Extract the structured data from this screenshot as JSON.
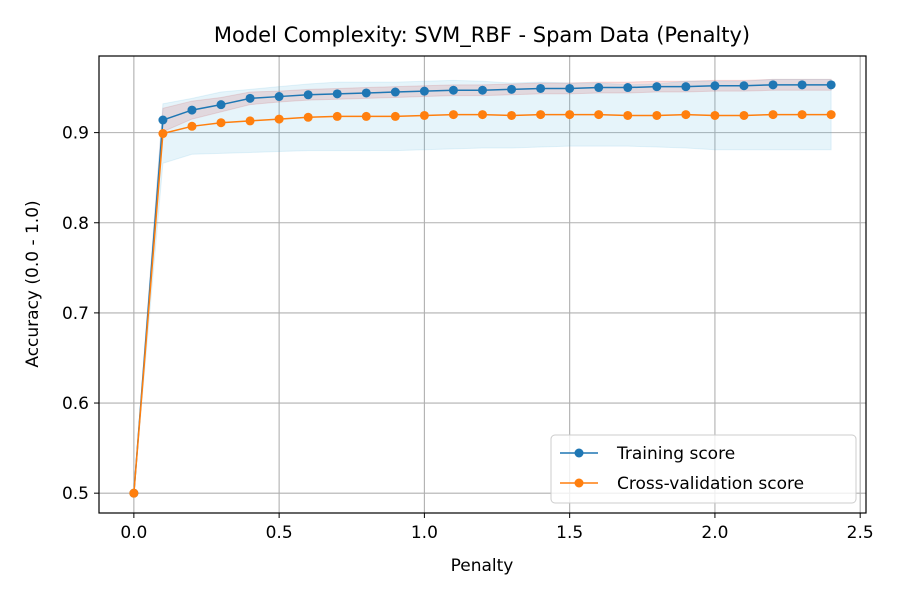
{
  "chart_data": {
    "type": "line",
    "title": "Model Complexity: SVM_RBF - Spam Data (Penalty)",
    "xlabel": "Penalty",
    "ylabel": "Accuracy (0.0 - 1.0)",
    "xlim": [
      -0.12,
      2.52
    ],
    "ylim": [
      0.478,
      0.985
    ],
    "xticks": [
      0.0,
      0.5,
      1.0,
      1.5,
      2.0,
      2.5
    ],
    "xtick_labels": [
      "0.0",
      "0.5",
      "1.0",
      "1.5",
      "2.0",
      "2.5"
    ],
    "yticks": [
      0.5,
      0.6,
      0.7,
      0.8,
      0.9
    ],
    "ytick_labels": [
      "0.5",
      "0.6",
      "0.7",
      "0.8",
      "0.9"
    ],
    "grid": true,
    "legend_position": "lower-right",
    "x": [
      0.0,
      0.1,
      0.2,
      0.3,
      0.4,
      0.5,
      0.6,
      0.7,
      0.8,
      0.9,
      1.0,
      1.1,
      1.2,
      1.3,
      1.4,
      1.5,
      1.6,
      1.7,
      1.8,
      1.9,
      2.0,
      2.1,
      2.2,
      2.3,
      2.4
    ],
    "series": [
      {
        "name": "Training score",
        "color": "#1f77b4",
        "band_color": "#d62728",
        "values": [
          0.5,
          0.914,
          0.925,
          0.931,
          0.938,
          0.94,
          0.942,
          0.943,
          0.944,
          0.945,
          0.946,
          0.947,
          0.947,
          0.948,
          0.949,
          0.949,
          0.95,
          0.95,
          0.951,
          0.951,
          0.952,
          0.952,
          0.953,
          0.953,
          0.953
        ],
        "lower": [
          0.5,
          0.901,
          0.915,
          0.923,
          0.931,
          0.934,
          0.936,
          0.937,
          0.938,
          0.939,
          0.94,
          0.941,
          0.941,
          0.942,
          0.943,
          0.943,
          0.944,
          0.944,
          0.945,
          0.945,
          0.946,
          0.946,
          0.947,
          0.947,
          0.947
        ],
        "upper": [
          0.5,
          0.927,
          0.935,
          0.939,
          0.945,
          0.946,
          0.948,
          0.949,
          0.95,
          0.951,
          0.952,
          0.953,
          0.953,
          0.954,
          0.955,
          0.955,
          0.956,
          0.956,
          0.957,
          0.957,
          0.958,
          0.958,
          0.959,
          0.959,
          0.959
        ]
      },
      {
        "name": "Cross-validation score",
        "color": "#ff7f0e",
        "band_color": "#5ab4e0",
        "values": [
          0.5,
          0.899,
          0.907,
          0.911,
          0.913,
          0.915,
          0.917,
          0.918,
          0.918,
          0.918,
          0.919,
          0.92,
          0.92,
          0.919,
          0.92,
          0.92,
          0.92,
          0.919,
          0.919,
          0.92,
          0.919,
          0.919,
          0.92,
          0.92,
          0.92
        ],
        "lower": [
          0.5,
          0.866,
          0.876,
          0.877,
          0.878,
          0.879,
          0.88,
          0.88,
          0.88,
          0.88,
          0.881,
          0.882,
          0.883,
          0.883,
          0.884,
          0.885,
          0.885,
          0.885,
          0.884,
          0.883,
          0.881,
          0.881,
          0.881,
          0.881,
          0.881
        ],
        "upper": [
          0.5,
          0.932,
          0.938,
          0.945,
          0.948,
          0.951,
          0.954,
          0.956,
          0.956,
          0.956,
          0.957,
          0.958,
          0.957,
          0.955,
          0.956,
          0.955,
          0.955,
          0.953,
          0.954,
          0.957,
          0.957,
          0.957,
          0.959,
          0.959,
          0.959
        ]
      }
    ]
  }
}
